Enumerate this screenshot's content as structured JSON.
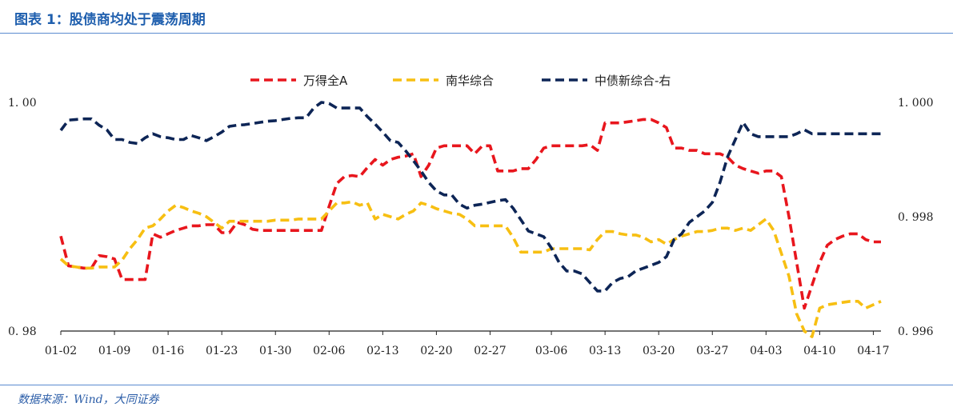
{
  "header": {
    "title": "图表 1：股债商均处于震荡周期"
  },
  "footer": {
    "source": "数据来源：Wind，大同证券"
  },
  "colors": {
    "wind": "#e8161d",
    "nanhua": "#f7bf12",
    "zhongzhai": "#0d2556",
    "title": "#1f5fae",
    "rule": "#5b8bd0"
  },
  "chart_data": {
    "type": "line",
    "title": "",
    "xlabel": "",
    "ylabel": "",
    "legend_position": "top",
    "grid": false,
    "x_tick_labels": [
      "01-02",
      "01-09",
      "01-16",
      "01-23",
      "01-30",
      "02-06",
      "02-13",
      "02-20",
      "02-27",
      "03-06",
      "03-13",
      "03-20",
      "03-27",
      "04-03",
      "04-10",
      "04-17"
    ],
    "y_left": {
      "min": 0.98,
      "max": 1.0,
      "tick_labels": [
        "1. 00",
        "0. 98"
      ]
    },
    "y_right": {
      "min": 0.996,
      "max": 1.0,
      "tick_labels": [
        "1. 000",
        "0. 998",
        "0. 996"
      ]
    },
    "series": [
      {
        "name": "万得全A",
        "axis": "left",
        "x": [
          "01-02",
          "01-03",
          "01-04",
          "01-05",
          "01-06",
          "01-07",
          "01-08",
          "01-09",
          "01-10",
          "01-11",
          "01-12",
          "01-13",
          "01-14",
          "01-15",
          "01-16",
          "01-17",
          "01-18",
          "01-19",
          "01-20",
          "01-21",
          "01-22",
          "01-23",
          "01-24",
          "01-25",
          "01-26",
          "01-27",
          "01-28",
          "01-29",
          "01-30",
          "01-31",
          "02-01",
          "02-02",
          "02-03",
          "02-04",
          "02-05",
          "02-06",
          "02-07",
          "02-08",
          "02-09",
          "02-10",
          "02-11",
          "02-12",
          "02-13",
          "02-14",
          "02-15",
          "02-16",
          "02-17",
          "02-18",
          "02-19",
          "02-20",
          "02-21",
          "02-22",
          "02-23",
          "02-24",
          "02-25",
          "02-26",
          "02-27",
          "02-28",
          "02-29",
          "03-01",
          "03-02",
          "03-03",
          "03-04",
          "03-05",
          "03-06",
          "03-07",
          "03-08",
          "03-09",
          "03-10",
          "03-11",
          "03-12",
          "03-13",
          "03-14",
          "03-15",
          "03-16",
          "03-17",
          "03-18",
          "03-19",
          "03-20",
          "03-21",
          "03-22",
          "03-23",
          "03-24",
          "03-25",
          "03-26",
          "03-27",
          "03-28",
          "03-29",
          "03-30",
          "03-31",
          "04-01",
          "04-02",
          "04-03",
          "04-04",
          "04-05",
          "04-06",
          "04-07",
          "04-08",
          "04-09",
          "04-10",
          "04-11",
          "04-12",
          "04-13",
          "04-14",
          "04-15",
          "04-16",
          "04-17",
          "04-18"
        ],
        "values": [
          0.9883,
          0.9857,
          0.9856,
          0.9855,
          0.9855,
          0.9866,
          0.9865,
          0.9863,
          0.9845,
          0.9845,
          0.9845,
          0.9845,
          0.9885,
          0.9882,
          0.9885,
          0.9888,
          0.989,
          0.9892,
          0.9892,
          0.9893,
          0.9893,
          0.9886,
          0.9886,
          0.9895,
          0.9893,
          0.9889,
          0.9888,
          0.9888,
          0.9888,
          0.9888,
          0.9888,
          0.9888,
          0.9888,
          0.9888,
          0.9888,
          0.9909,
          0.9929,
          0.9935,
          0.9936,
          0.9935,
          0.9943,
          0.995,
          0.9945,
          0.995,
          0.9952,
          0.9953,
          0.9955,
          0.9935,
          0.9945,
          0.996,
          0.9962,
          0.9962,
          0.9962,
          0.9962,
          0.9955,
          0.9962,
          0.9962,
          0.994,
          0.994,
          0.994,
          0.9942,
          0.9942,
          0.995,
          0.996,
          0.9962,
          0.9962,
          0.9962,
          0.9962,
          0.9962,
          0.9963,
          0.9958,
          0.9982,
          0.9982,
          0.9982,
          0.9983,
          0.9984,
          0.9985,
          0.9985,
          0.9982,
          0.9978,
          0.996,
          0.996,
          0.9958,
          0.9958,
          0.9955,
          0.9955,
          0.9955,
          0.9952,
          0.9945,
          0.9942,
          0.994,
          0.9938,
          0.994,
          0.994,
          0.9935,
          0.99,
          0.986,
          0.982,
          0.984,
          0.986,
          0.9875,
          0.988,
          0.9883,
          0.9885,
          0.9885,
          0.988,
          0.9878,
          0.9878
        ]
      },
      {
        "name": "南华综合",
        "axis": "left",
        "x": [
          "01-02",
          "01-03",
          "01-04",
          "01-05",
          "01-06",
          "01-07",
          "01-08",
          "01-09",
          "01-10",
          "01-11",
          "01-12",
          "01-13",
          "01-14",
          "01-15",
          "01-16",
          "01-17",
          "01-18",
          "01-19",
          "01-20",
          "01-21",
          "01-22",
          "01-23",
          "01-24",
          "01-25",
          "01-26",
          "01-27",
          "01-28",
          "01-29",
          "01-30",
          "01-31",
          "02-01",
          "02-02",
          "02-03",
          "02-04",
          "02-05",
          "02-06",
          "02-07",
          "02-08",
          "02-09",
          "02-10",
          "02-11",
          "02-12",
          "02-13",
          "02-14",
          "02-15",
          "02-16",
          "02-17",
          "02-18",
          "02-19",
          "02-20",
          "02-21",
          "02-22",
          "02-23",
          "02-24",
          "02-25",
          "02-26",
          "02-27",
          "02-28",
          "02-29",
          "03-01",
          "03-02",
          "03-03",
          "03-04",
          "03-05",
          "03-06",
          "03-07",
          "03-08",
          "03-09",
          "03-10",
          "03-11",
          "03-12",
          "03-13",
          "03-14",
          "03-15",
          "03-16",
          "03-17",
          "03-18",
          "03-19",
          "03-20",
          "03-21",
          "03-22",
          "03-23",
          "03-24",
          "03-25",
          "03-26",
          "03-27",
          "03-28",
          "03-29",
          "03-30",
          "03-31",
          "04-01",
          "04-02",
          "04-03",
          "04-04",
          "04-05",
          "04-06",
          "04-07",
          "04-08",
          "04-09",
          "04-10",
          "04-11",
          "04-12",
          "04-13",
          "04-14",
          "04-15",
          "04-16",
          "04-17",
          "04-18"
        ],
        "values": [
          0.9863,
          0.9857,
          0.9856,
          0.9855,
          0.9855,
          0.9856,
          0.9856,
          0.9856,
          0.9862,
          0.9872,
          0.988,
          0.989,
          0.9892,
          0.9898,
          0.9905,
          0.991,
          0.9908,
          0.9905,
          0.9903,
          0.99,
          0.9895,
          0.989,
          0.9896,
          0.9896,
          0.9896,
          0.9896,
          0.9896,
          0.9896,
          0.9897,
          0.9897,
          0.9897,
          0.9898,
          0.9898,
          0.9898,
          0.9898,
          0.9905,
          0.9912,
          0.9912,
          0.9913,
          0.991,
          0.9912,
          0.9898,
          0.9902,
          0.99,
          0.9898,
          0.9902,
          0.9905,
          0.9912,
          0.991,
          0.9907,
          0.9905,
          0.9903,
          0.9902,
          0.9898,
          0.9892,
          0.9892,
          0.9892,
          0.9892,
          0.9892,
          0.9882,
          0.9869,
          0.9869,
          0.9869,
          0.9869,
          0.9872,
          0.9872,
          0.9872,
          0.9872,
          0.9872,
          0.9871,
          0.988,
          0.9887,
          0.9887,
          0.9885,
          0.9884,
          0.9884,
          0.9882,
          0.9878,
          0.988,
          0.9876,
          0.988,
          0.9883,
          0.9885,
          0.9887,
          0.9887,
          0.9888,
          0.989,
          0.989,
          0.9888,
          0.989,
          0.9888,
          0.9893,
          0.9898,
          0.9888,
          0.9868,
          0.9848,
          0.9815,
          0.98,
          0.9795,
          0.982,
          0.9823,
          0.9824,
          0.9825,
          0.9826,
          0.9826,
          0.982,
          0.9823,
          0.9826
        ]
      },
      {
        "name": "中债新综合-右",
        "axis": "right",
        "x": [
          "01-02",
          "01-03",
          "01-04",
          "01-05",
          "01-06",
          "01-07",
          "01-08",
          "01-09",
          "01-10",
          "01-11",
          "01-12",
          "01-13",
          "01-14",
          "01-15",
          "01-16",
          "01-17",
          "01-18",
          "01-19",
          "01-20",
          "01-21",
          "01-22",
          "01-23",
          "01-24",
          "01-25",
          "01-26",
          "01-27",
          "01-28",
          "01-29",
          "01-30",
          "01-31",
          "02-01",
          "02-02",
          "02-03",
          "02-04",
          "02-05",
          "02-06",
          "02-07",
          "02-08",
          "02-09",
          "02-10",
          "02-11",
          "02-12",
          "02-13",
          "02-14",
          "02-15",
          "02-16",
          "02-17",
          "02-18",
          "02-19",
          "02-20",
          "02-21",
          "02-22",
          "02-23",
          "02-24",
          "02-25",
          "02-26",
          "02-27",
          "02-28",
          "02-29",
          "03-01",
          "03-02",
          "03-03",
          "03-04",
          "03-05",
          "03-06",
          "03-07",
          "03-08",
          "03-09",
          "03-10",
          "03-11",
          "03-12",
          "03-13",
          "03-14",
          "03-15",
          "03-16",
          "03-17",
          "03-18",
          "03-19",
          "03-20",
          "03-21",
          "03-22",
          "03-23",
          "03-24",
          "03-25",
          "03-26",
          "03-27",
          "03-28",
          "03-29",
          "03-30",
          "03-31",
          "04-01",
          "04-02",
          "04-03",
          "04-04",
          "04-05",
          "04-06",
          "04-07",
          "04-08",
          "04-09",
          "04-10",
          "04-11",
          "04-12",
          "04-13",
          "04-14",
          "04-15",
          "04-16",
          "04-17",
          "04-18"
        ],
        "values": [
          0.99951,
          0.99969,
          0.9997,
          0.99971,
          0.99971,
          0.9996,
          0.99952,
          0.99935,
          0.99935,
          0.9993,
          0.99928,
          0.99938,
          0.99945,
          0.9994,
          0.99938,
          0.99935,
          0.99935,
          0.99942,
          0.99938,
          0.99933,
          0.9994,
          0.99948,
          0.99958,
          0.9996,
          0.99961,
          0.99963,
          0.99965,
          0.99967,
          0.99968,
          0.9997,
          0.99972,
          0.99973,
          0.99973,
          0.9999,
          1.0,
          0.99998,
          0.9999,
          0.9999,
          0.9999,
          0.9999,
          0.99975,
          0.99962,
          0.99948,
          0.99933,
          0.9993,
          0.99915,
          0.99898,
          0.9988,
          0.9986,
          0.99845,
          0.99838,
          0.99838,
          0.99822,
          0.99815,
          0.9982,
          0.99822,
          0.99825,
          0.99828,
          0.9983,
          0.99815,
          0.99795,
          0.99775,
          0.9977,
          0.99765,
          0.99745,
          0.9972,
          0.99705,
          0.99705,
          0.997,
          0.99685,
          0.9967,
          0.9967,
          0.99685,
          0.99692,
          0.99695,
          0.99705,
          0.9971,
          0.99715,
          0.9972,
          0.9973,
          0.9976,
          0.9977,
          0.9979,
          0.998,
          0.9981,
          0.99825,
          0.9986,
          0.99905,
          0.99935,
          0.99965,
          0.99945,
          0.9994,
          0.9994,
          0.9994,
          0.9994,
          0.9994,
          0.99945,
          0.99952,
          0.99945,
          0.99945,
          0.99945,
          0.99945,
          0.99945,
          0.99945,
          0.99945,
          0.99945,
          0.99945,
          0.99945
        ]
      }
    ]
  }
}
